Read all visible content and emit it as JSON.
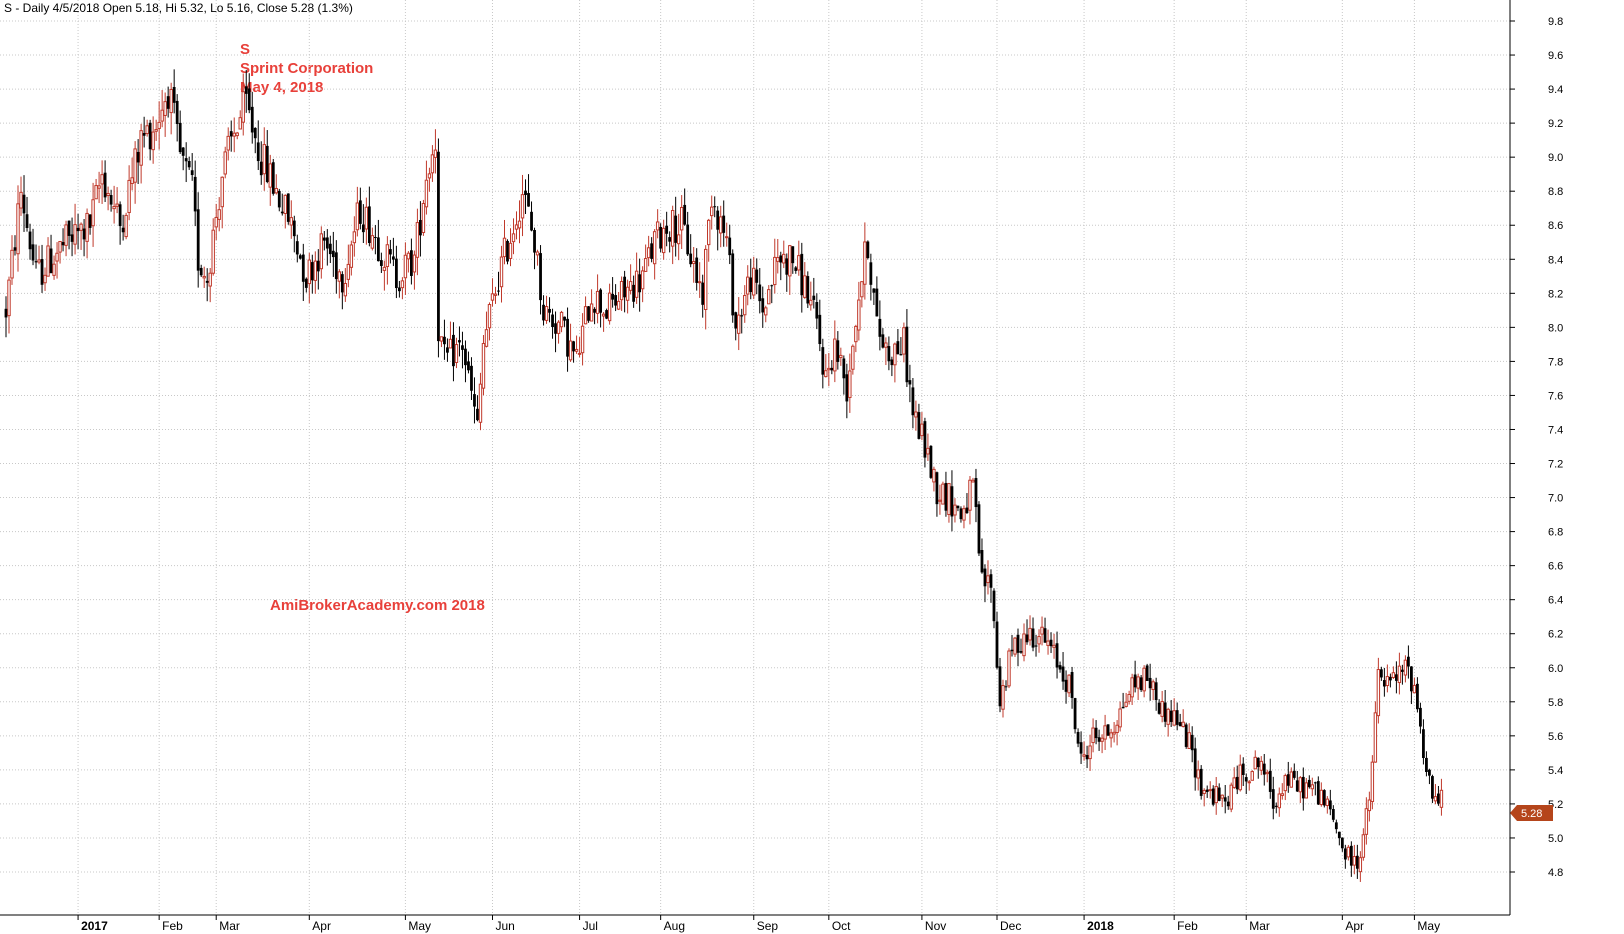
{
  "header": {
    "text": "S - Daily 4/5/2018 Open 5.18, Hi 5.32, Lo 5.16, Close 5.28 (1.3%)"
  },
  "annotation": {
    "lines": [
      "S",
      "Sprint Corporation",
      "May 4, 2018"
    ]
  },
  "watermark": "AmiBrokerAcademy.com  2018",
  "price_label": "5.28",
  "colors": {
    "up": "#c0392b",
    "down": "#000000",
    "grid": "#c8c8c8",
    "annotation": "#e8403a",
    "price_tag": "#b5451b"
  },
  "chart_data": {
    "type": "candlestick",
    "ylim": [
      4.7,
      10.0
    ],
    "yticks": [
      4.8,
      5.0,
      5.2,
      5.4,
      5.6,
      5.8,
      6.0,
      6.2,
      6.4,
      6.6,
      6.8,
      7.0,
      7.2,
      7.4,
      7.6,
      7.8,
      8.0,
      8.2,
      8.4,
      8.6,
      8.8,
      9.0,
      9.2,
      9.4,
      9.6,
      9.8
    ],
    "xticks": [
      {
        "label": "2017",
        "bold": true
      },
      {
        "label": "Feb"
      },
      {
        "label": "Mar"
      },
      {
        "label": "Apr"
      },
      {
        "label": "May"
      },
      {
        "label": "Jun"
      },
      {
        "label": "Jul"
      },
      {
        "label": "Aug"
      },
      {
        "label": "Sep"
      },
      {
        "label": "Oct"
      },
      {
        "label": "Nov"
      },
      {
        "label": "Dec"
      },
      {
        "label": "2018",
        "bold": true
      },
      {
        "label": "Feb"
      },
      {
        "label": "Mar"
      },
      {
        "label": "Apr"
      },
      {
        "label": "May"
      }
    ],
    "last_close": 5.28,
    "anchors": [
      [
        0,
        8.1
      ],
      [
        5,
        8.8
      ],
      [
        10,
        8.3
      ],
      [
        20,
        8.5
      ],
      [
        28,
        8.6
      ],
      [
        32,
        8.9
      ],
      [
        38,
        8.6
      ],
      [
        45,
        9.1
      ],
      [
        50,
        9.2
      ],
      [
        54,
        9.4
      ],
      [
        58,
        9.0
      ],
      [
        62,
        8.8
      ],
      [
        64,
        8.4
      ],
      [
        67,
        8.3
      ],
      [
        72,
        8.9
      ],
      [
        77,
        9.2
      ],
      [
        80,
        9.3
      ],
      [
        85,
        9.0
      ],
      [
        90,
        8.8
      ],
      [
        95,
        8.6
      ],
      [
        100,
        8.3
      ],
      [
        106,
        8.5
      ],
      [
        112,
        8.3
      ],
      [
        118,
        8.7
      ],
      [
        124,
        8.5
      ],
      [
        130,
        8.3
      ],
      [
        136,
        8.4
      ],
      [
        140,
        8.9
      ],
      [
        143,
        9.1
      ],
      [
        144,
        8.0
      ],
      [
        146,
        7.8
      ],
      [
        152,
        7.9
      ],
      [
        155,
        7.6
      ],
      [
        157,
        7.4
      ],
      [
        159,
        7.9
      ],
      [
        164,
        8.3
      ],
      [
        169,
        8.6
      ],
      [
        172,
        8.8
      ],
      [
        176,
        8.5
      ],
      [
        179,
        8.1
      ],
      [
        185,
        8.0
      ],
      [
        190,
        7.8
      ],
      [
        195,
        8.2
      ],
      [
        200,
        8.1
      ],
      [
        206,
        8.2
      ],
      [
        212,
        8.3
      ],
      [
        216,
        8.5
      ],
      [
        220,
        8.6
      ],
      [
        225,
        8.6
      ],
      [
        230,
        8.3
      ],
      [
        232,
        8.2
      ],
      [
        235,
        8.8
      ],
      [
        240,
        8.5
      ],
      [
        243,
        8.0
      ],
      [
        248,
        8.3
      ],
      [
        252,
        8.1
      ],
      [
        257,
        8.4
      ],
      [
        262,
        8.4
      ],
      [
        267,
        8.2
      ],
      [
        270,
        8.0
      ],
      [
        273,
        7.7
      ],
      [
        276,
        7.9
      ],
      [
        280,
        7.65
      ],
      [
        284,
        8.2
      ],
      [
        287,
        8.5
      ],
      [
        290,
        8.0
      ],
      [
        294,
        7.85
      ],
      [
        299,
        7.9
      ],
      [
        302,
        7.5
      ],
      [
        306,
        7.3
      ],
      [
        310,
        7.05
      ],
      [
        314,
        7.0
      ],
      [
        318,
        6.9
      ],
      [
        322,
        7.05
      ],
      [
        325,
        6.5
      ],
      [
        328,
        6.5
      ],
      [
        331,
        5.8
      ],
      [
        335,
        6.1
      ],
      [
        340,
        6.2
      ],
      [
        344,
        6.2
      ],
      [
        348,
        6.1
      ],
      [
        354,
        5.9
      ],
      [
        358,
        5.45
      ],
      [
        362,
        5.6
      ],
      [
        366,
        5.6
      ],
      [
        370,
        5.7
      ],
      [
        375,
        5.9
      ],
      [
        380,
        5.95
      ],
      [
        385,
        5.75
      ],
      [
        390,
        5.7
      ],
      [
        394,
        5.55
      ],
      [
        398,
        5.3
      ],
      [
        402,
        5.25
      ],
      [
        406,
        5.2
      ],
      [
        410,
        5.35
      ],
      [
        414,
        5.4
      ],
      [
        418,
        5.45
      ],
      [
        422,
        5.2
      ],
      [
        426,
        5.35
      ],
      [
        430,
        5.3
      ],
      [
        434,
        5.3
      ],
      [
        438,
        5.25
      ],
      [
        442,
        5.1
      ],
      [
        446,
        4.9
      ],
      [
        450,
        4.85
      ],
      [
        454,
        5.2
      ],
      [
        457,
        5.95
      ],
      [
        460,
        5.9
      ],
      [
        464,
        5.95
      ],
      [
        466,
        6.0
      ],
      [
        469,
        5.9
      ],
      [
        473,
        5.4
      ],
      [
        476,
        5.2
      ],
      [
        478,
        5.28
      ]
    ]
  }
}
